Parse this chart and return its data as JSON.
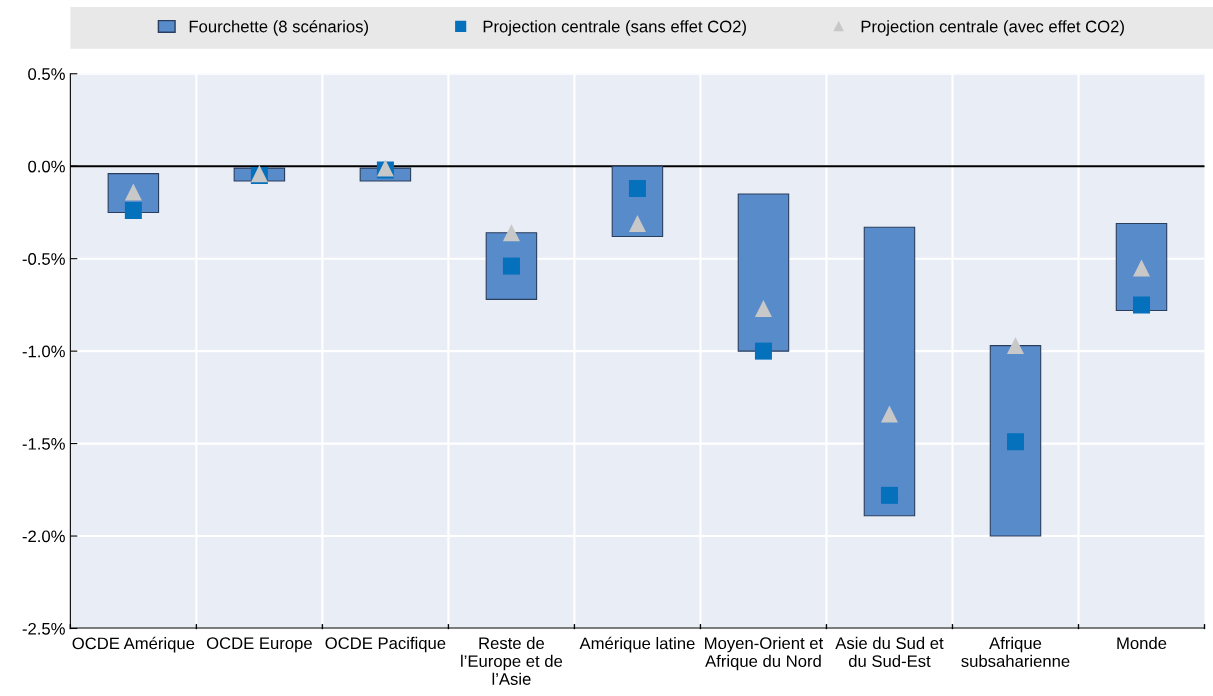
{
  "chart_data": {
    "type": "bar",
    "categories": [
      "OCDE Amérique",
      "OCDE Europe",
      "OCDE Pacifique",
      "Reste de\nl’Europe et de\nl’Asie",
      "Amérique latine",
      "Moyen-Orient et\nAfrique du Nord",
      "Asie du Sud et\ndu Sud-Est",
      "Afrique\nsubsaharienne",
      "Monde"
    ],
    "series": [
      {
        "name": "Fourchette (8 scénarios)",
        "color": "#588bca",
        "base": [
          -0.25,
          -0.08,
          -0.08,
          -0.72,
          -0.38,
          -1.0,
          -1.89,
          -2.0,
          -0.78
        ],
        "values": [
          0.21,
          0.07,
          0.07,
          0.36,
          0.38,
          0.85,
          1.56,
          1.03,
          0.47
        ]
      },
      {
        "name": "Projection centrale (sans effet CO2)",
        "type": "scatter",
        "marker": "square",
        "color": "#0570bc",
        "values": [
          -0.24,
          -0.05,
          -0.02,
          -0.54,
          -0.12,
          -1.0,
          -1.78,
          -1.49,
          -0.75
        ]
      },
      {
        "name": "Projection centrale (avec effet CO2)",
        "type": "scatter",
        "marker": "triangle",
        "color": "#c8c8c8",
        "values": [
          -0.14,
          -0.04,
          -0.01,
          -0.36,
          -0.31,
          -0.77,
          -1.34,
          -0.97,
          -0.55
        ]
      }
    ],
    "ylim": [
      -2.5,
      0.5
    ],
    "yticks": [
      {
        "value": -2.5,
        "label": "-2.5%"
      },
      {
        "value": -2.0,
        "label": "-2.0%"
      },
      {
        "value": -1.5,
        "label": "-1.5%"
      },
      {
        "value": -1.0,
        "label": "-1.0%"
      },
      {
        "value": -0.5,
        "label": "-0.5%"
      },
      {
        "value": 0.0,
        "label": "0.0%"
      },
      {
        "value": 0.5,
        "label": "0.5%"
      }
    ],
    "grid": true,
    "legend": "top"
  }
}
